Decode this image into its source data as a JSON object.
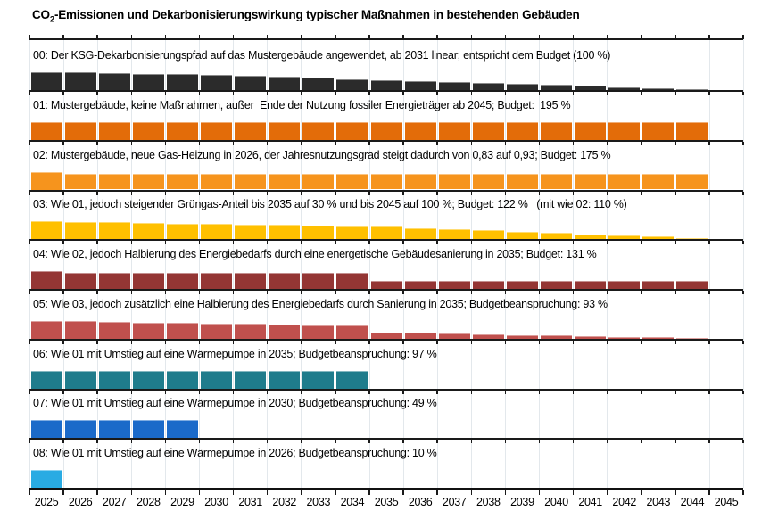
{
  "title": {
    "prefix": "CO",
    "sub": "2",
    "rest": "-Emissionen und Dekarbonisierungswirkung typischer Maßnahmen in bestehenden Gebäuden"
  },
  "chart_data": {
    "type": "bar",
    "title": "CO2-Emissionen und Dekarbonisierungswirkung typischer Maßnahmen in bestehenden Gebäuden",
    "x": [
      2025,
      2026,
      2027,
      2028,
      2029,
      2030,
      2031,
      2032,
      2033,
      2034,
      2035,
      2036,
      2037,
      2038,
      2039,
      2040,
      2041,
      2042,
      2043,
      2044,
      2045
    ],
    "x_tick_labels": [
      "2025",
      "2026",
      "2027",
      "2028",
      "2029",
      "2030",
      "2031",
      "2032",
      "2033",
      "2034",
      "2035",
      "2036",
      "2037",
      "2038",
      "2039",
      "2040",
      "2041",
      "2042",
      "2043",
      "2044",
      "2045"
    ],
    "ylabel": "",
    "xlabel": "",
    "ylim": [
      0,
      110
    ],
    "grid": "faint vertical gridlines at year boundaries",
    "legend_position": "none (labels above each small-multiple row)",
    "layout": "9 stacked small-multiple bar rows sharing one x-axis, each row has its own baseline; values are relative emissions, 2025 = 100",
    "rows": [
      {
        "id": "00",
        "label": "00: Der KSG-Dekarbonisierungspfad auf das Mustergebäude angewendet, ab 2031 linear; entspricht dem Budget (100 %)",
        "budget_percent": 100,
        "color": "#2b2b2b",
        "values": [
          100,
          98,
          95,
          92,
          88,
          84,
          79,
          73,
          68,
          62,
          56,
          51,
          45,
          39,
          34,
          28,
          23,
          17,
          11,
          6,
          0
        ]
      },
      {
        "id": "01",
        "label": "01: Mustergebäude, keine Maßnahmen, außer  Ende der Nutzung fossiler Energieträger ab 2045; Budget:  195 %",
        "budget_percent": 195,
        "color": "#e36c09",
        "values": [
          100,
          100,
          100,
          100,
          100,
          100,
          100,
          100,
          100,
          100,
          100,
          100,
          100,
          100,
          100,
          100,
          100,
          100,
          100,
          100,
          0
        ]
      },
      {
        "id": "02",
        "label": "02: Mustergebäude, neue Gas-Heizung in 2026, der Jahresnutzungsgrad steigt dadurch von 0,83 auf 0,93; Budget: 175 %",
        "budget_percent": 175,
        "color": "#f6941d",
        "values": [
          100,
          89,
          89,
          89,
          89,
          89,
          89,
          89,
          89,
          89,
          89,
          89,
          89,
          89,
          89,
          89,
          89,
          89,
          89,
          89,
          0
        ]
      },
      {
        "id": "03",
        "label": "03: Wie 01, jedoch steigender Grüngas-Anteil bis 2035 auf 30 % und bis 2045 auf 100 %; Budget: 122 %   (mit wie 02: 110 %)",
        "budget_percent": 122,
        "color": "#ffc000",
        "values": [
          100,
          97,
          94,
          91,
          88,
          85,
          82,
          79,
          76,
          73,
          70,
          63,
          56,
          49,
          42,
          35,
          28,
          21,
          14,
          7,
          0
        ]
      },
      {
        "id": "04",
        "label": "04: Wie 02, jedoch Halbierung des Energiebedarfs durch eine energetische Gebäudesanierung in 2035; Budget: 131 %",
        "budget_percent": 131,
        "color": "#943634",
        "values": [
          100,
          89,
          89,
          89,
          89,
          89,
          89,
          89,
          89,
          89,
          45,
          45,
          45,
          45,
          45,
          45,
          45,
          45,
          45,
          45,
          0
        ]
      },
      {
        "id": "05",
        "label": "05: Wie 03, jedoch zusätzlich eine Halbierung des Energiebedarfs durch Sanierung in 2035; Budgetbeanspruchung: 93 %",
        "budget_percent": 93,
        "color": "#c0504d",
        "values": [
          100,
          97,
          94,
          91,
          88,
          85,
          82,
          79,
          76,
          73,
          35,
          32,
          28,
          25,
          21,
          18,
          14,
          11,
          7,
          4,
          0
        ]
      },
      {
        "id": "06",
        "label": "06: Wie 01 mit Umstieg auf eine Wärmepumpe in 2035; Budgetbeanspruchung: 97 %",
        "budget_percent": 97,
        "color": "#1f7c8c",
        "values": [
          100,
          100,
          100,
          100,
          100,
          100,
          100,
          100,
          100,
          100,
          0,
          0,
          0,
          0,
          0,
          0,
          0,
          0,
          0,
          0,
          0
        ]
      },
      {
        "id": "07",
        "label": "07: Wie 01 mit Umstieg auf eine Wärmepumpe in 2030; Budgetbeanspruchung: 49 %",
        "budget_percent": 49,
        "color": "#1b6ac9",
        "values": [
          100,
          100,
          100,
          100,
          100,
          0,
          0,
          0,
          0,
          0,
          0,
          0,
          0,
          0,
          0,
          0,
          0,
          0,
          0,
          0,
          0
        ]
      },
      {
        "id": "08",
        "label": "08: Wie 01 mit Umstieg auf eine Wärmepumpe in 2026; Budgetbeanspruchung: 10 %",
        "budget_percent": 10,
        "color": "#29abe3",
        "values": [
          100,
          0,
          0,
          0,
          0,
          0,
          0,
          0,
          0,
          0,
          0,
          0,
          0,
          0,
          0,
          0,
          0,
          0,
          0,
          0,
          0
        ]
      }
    ],
    "colors": {
      "axis": "#1a1a1a",
      "gridline": "#e3e8ec",
      "background": "#ffffff"
    }
  }
}
